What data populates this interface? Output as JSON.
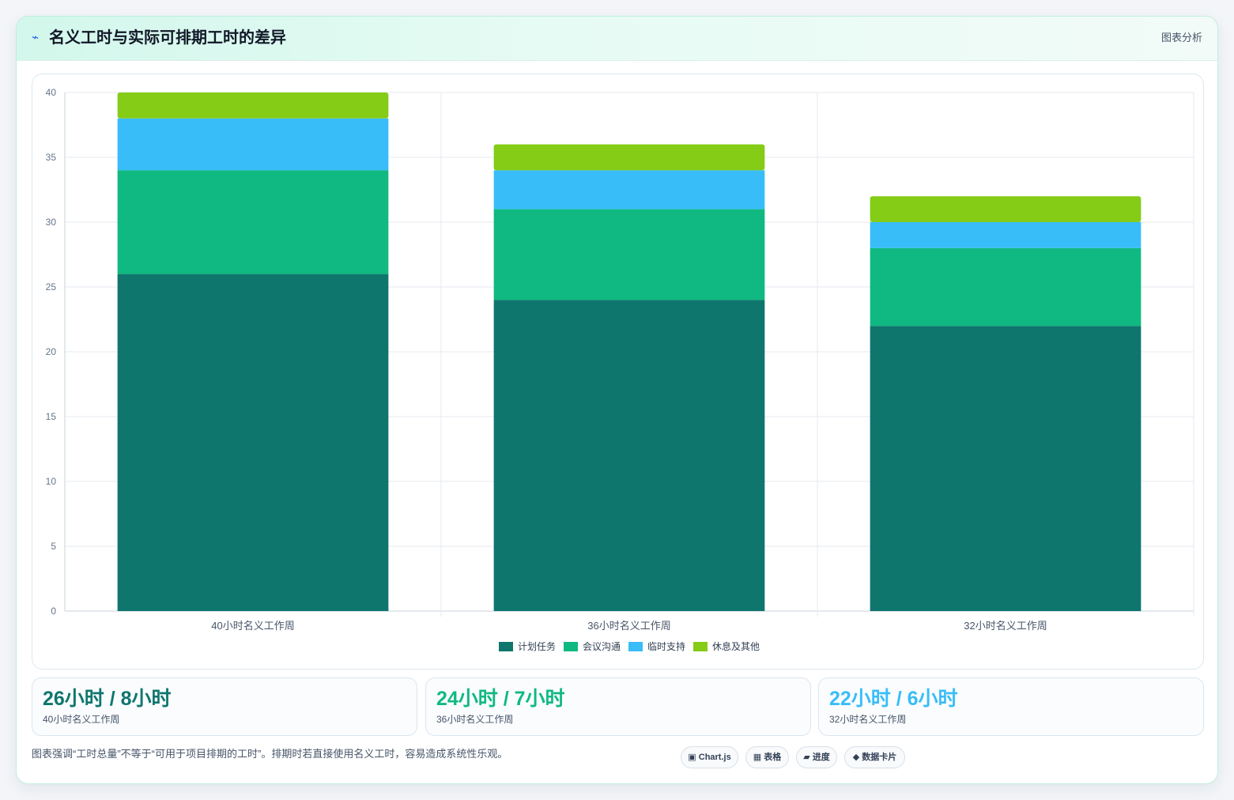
{
  "header": {
    "icon": "lightning-icon",
    "title": "名义工时与实际可排期工时的差异",
    "tag": "图表分析"
  },
  "colors": {
    "planned": "#0f766e",
    "meeting": "#10b981",
    "adhoc": "#38bdf8",
    "rest": "#84cc16",
    "stat1": "#0f766e",
    "stat2": "#10b981",
    "stat3": "#38bdf8"
  },
  "chart_data": {
    "type": "bar",
    "stacked": true,
    "categories": [
      "40小时名义工作周",
      "36小时名义工作周",
      "32小时名义工作周"
    ],
    "series": [
      {
        "name": "计划任务",
        "values": [
          26,
          24,
          22
        ]
      },
      {
        "name": "会议沟通",
        "values": [
          8,
          7,
          6
        ]
      },
      {
        "name": "临时支持",
        "values": [
          4,
          3,
          2
        ]
      },
      {
        "name": "休息及其他",
        "values": [
          2,
          2,
          2
        ]
      }
    ],
    "yticks": [
      0,
      5,
      10,
      15,
      20,
      25,
      30,
      35,
      40
    ],
    "ylim": [
      0,
      40
    ],
    "grid": true,
    "legend": "bottom"
  },
  "stats": [
    {
      "value": "26小时 / 8小时",
      "label": "40小时名义工作周"
    },
    {
      "value": "24小时 / 7小时",
      "label": "36小时名义工作周"
    },
    {
      "value": "22小时 / 6小时",
      "label": "32小时名义工作周"
    }
  ],
  "footer": {
    "note": "图表强调“工时总量”不等于“可用于项目排期的工时”。排期时若直接使用名义工时，容易造成系统性乐观。",
    "chips": [
      {
        "icon": "▣",
        "label": "Chart.js"
      },
      {
        "icon": "▦",
        "label": "表格"
      },
      {
        "icon": "▰",
        "label": "进度"
      },
      {
        "icon": "◆",
        "label": "数据卡片"
      }
    ]
  }
}
